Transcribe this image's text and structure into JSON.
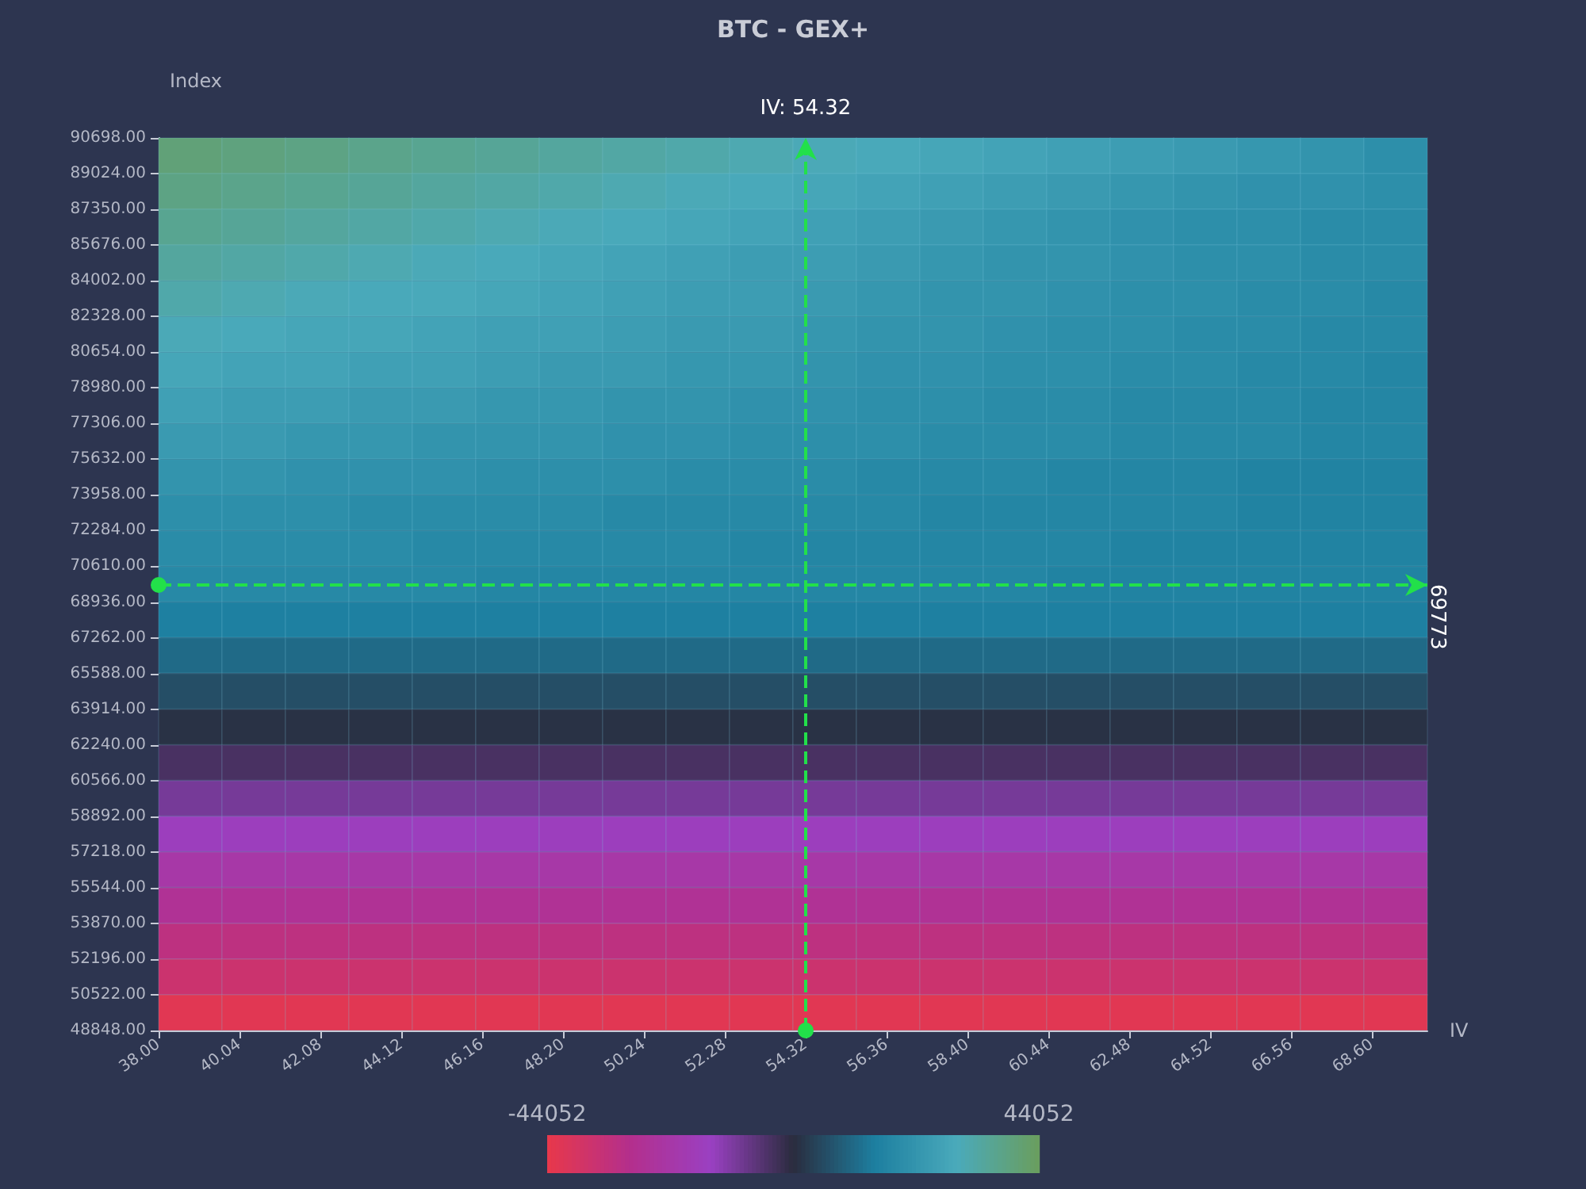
{
  "chart_data": {
    "type": "heatmap",
    "title": "BTC - GEX+",
    "xlabel": "IV",
    "ylabel": "Index",
    "xlim": [
      38,
      70
    ],
    "xticks": [
      {
        "value": 38,
        "label": "38.00"
      },
      40.04,
      42.08,
      44.12,
      46.16,
      {
        "value": 48.2,
        "label": "48.20"
      },
      50.24,
      52.28,
      54.32,
      56.36,
      {
        "value": 58.4,
        "label": "58.40"
      },
      60.44,
      62.48,
      64.52,
      66.56,
      {
        "value": 68.6,
        "label": "68.60"
      }
    ],
    "ylim": [
      48848,
      90698
    ],
    "yticks": [
      {
        "value": 48848,
        "label": "48848.00"
      },
      {
        "value": 50522,
        "label": "50522.00"
      },
      {
        "value": 52196,
        "label": "52196.00"
      },
      {
        "value": 53870,
        "label": "53870.00"
      },
      {
        "value": 55544,
        "label": "55544.00"
      },
      {
        "value": 57218,
        "label": "57218.00"
      },
      {
        "value": 58892,
        "label": "58892.00"
      },
      {
        "value": 60566,
        "label": "60566.00"
      },
      {
        "value": 62240,
        "label": "62240.00"
      },
      {
        "value": 63914,
        "label": "63914.00"
      },
      {
        "value": 65588,
        "label": "65588.00"
      },
      {
        "value": 67262,
        "label": "67262.00"
      },
      {
        "value": 68936,
        "label": "68936.00"
      },
      {
        "value": 70610,
        "label": "70610.00"
      },
      {
        "value": 72284,
        "label": "72284.00"
      },
      {
        "value": 73958,
        "label": "73958.00"
      },
      {
        "value": 75632,
        "label": "75632.00"
      },
      {
        "value": 77306,
        "label": "77306.00"
      },
      {
        "value": 78980,
        "label": "78980.00"
      },
      {
        "value": 80654,
        "label": "80654.00"
      },
      {
        "value": 82328,
        "label": "82328.00"
      },
      {
        "value": 84002,
        "label": "84002.00"
      },
      {
        "value": 85676,
        "label": "85676.00"
      },
      {
        "value": 87350,
        "label": "87350.00"
      },
      {
        "value": 89024,
        "label": "89024.00"
      },
      {
        "value": 90698,
        "label": "90698.00"
      }
    ],
    "clim": [
      -44052,
      44052
    ],
    "cticks": [
      -44052,
      44052
    ],
    "ref_lines": [
      {
        "axis": "x",
        "value": 54.32,
        "label": "IV: 54.32",
        "color": "#22e04a",
        "line_style": "dashed"
      },
      {
        "axis": "y",
        "value": 69773,
        "label": "69773",
        "color": "#22e04a",
        "line_style": "dashed"
      }
    ],
    "cells": [
      [
        40000,
        39000,
        38000,
        37000,
        36000,
        35000,
        34000,
        33000,
        32000,
        31000,
        30000,
        29000,
        28000,
        27000,
        26000,
        25000,
        24000,
        23000,
        22000,
        20000
      ],
      [
        38000,
        37000,
        36000,
        35000,
        34000,
        33000,
        32000,
        31000,
        30000,
        29000,
        28000,
        27000,
        26000,
        25000,
        24000,
        23000,
        22000,
        21000,
        21000,
        20000
      ],
      [
        36000,
        35000,
        34000,
        33000,
        32000,
        31000,
        30000,
        29000,
        28000,
        27000,
        26000,
        25000,
        24000,
        23000,
        22000,
        21000,
        20000,
        20000,
        19000,
        19000
      ],
      [
        34000,
        33000,
        32000,
        31000,
        30000,
        29000,
        28000,
        27000,
        26000,
        25000,
        25000,
        24000,
        23000,
        22000,
        22000,
        21000,
        20000,
        20000,
        19000,
        19000
      ],
      [
        32000,
        31000,
        30000,
        29000,
        29000,
        28000,
        27000,
        26000,
        25000,
        25000,
        24000,
        23000,
        22000,
        22000,
        21000,
        20000,
        20000,
        19000,
        19000,
        18000
      ],
      [
        30000,
        29000,
        28000,
        28000,
        27000,
        26000,
        26000,
        25000,
        24000,
        24000,
        23000,
        22000,
        22000,
        21000,
        20000,
        20000,
        19000,
        19000,
        18000,
        18000
      ],
      [
        28000,
        27000,
        27000,
        26000,
        26000,
        25000,
        24000,
        24000,
        23000,
        23000,
        22000,
        21000,
        21000,
        20000,
        20000,
        19000,
        19000,
        18000,
        18000,
        17000
      ],
      [
        26000,
        25000,
        25000,
        24000,
        24000,
        23000,
        23000,
        22000,
        22000,
        21000,
        21000,
        20000,
        20000,
        19000,
        19000,
        18000,
        18000,
        18000,
        17000,
        17000
      ],
      [
        24000,
        24000,
        23000,
        23000,
        22000,
        22000,
        22000,
        21000,
        21000,
        20000,
        20000,
        20000,
        19000,
        19000,
        19000,
        18000,
        18000,
        18000,
        17000,
        17000
      ],
      [
        22000,
        22000,
        21000,
        21000,
        21000,
        20000,
        20000,
        20000,
        19000,
        19000,
        19000,
        18000,
        18000,
        18000,
        17000,
        17000,
        17000,
        16000,
        16000,
        16000
      ],
      [
        20000,
        20000,
        20000,
        19000,
        19000,
        19000,
        19000,
        18000,
        18000,
        18000,
        18000,
        18000,
        17000,
        17000,
        17000,
        17000,
        17000,
        16000,
        16000,
        16000
      ],
      [
        19000,
        19000,
        19000,
        19000,
        18000,
        18000,
        18000,
        18000,
        18000,
        17000,
        17000,
        17000,
        17000,
        17000,
        17000,
        16000,
        16000,
        16000,
        16000,
        16000
      ],
      [
        18000,
        18000,
        18000,
        18000,
        18000,
        17000,
        17000,
        17000,
        17000,
        17000,
        17000,
        17000,
        17000,
        17000,
        16000,
        16000,
        16000,
        16000,
        16000,
        16000
      ],
      [
        15000,
        15000,
        15000,
        15000,
        15000,
        15000,
        15000,
        15000,
        15000,
        15000,
        15000,
        15000,
        15000,
        15000,
        15000,
        15000,
        15000,
        15000,
        15000,
        15000
      ],
      [
        11000,
        11000,
        11000,
        11000,
        11000,
        11000,
        11000,
        11000,
        11000,
        11000,
        11000,
        11000,
        11000,
        11000,
        11000,
        11000,
        11000,
        11000,
        11000,
        11000
      ],
      [
        6000,
        6000,
        6000,
        6000,
        6000,
        6000,
        6000,
        6000,
        6000,
        6000,
        6000,
        6000,
        6000,
        6000,
        6000,
        6000,
        6000,
        6000,
        6000,
        6000
      ],
      [
        1000,
        1000,
        1000,
        1000,
        1000,
        1000,
        1000,
        1000,
        1000,
        1000,
        1000,
        1000,
        1000,
        1000,
        1000,
        1000,
        1000,
        1000,
        1000,
        1000
      ],
      [
        -4000,
        -4000,
        -4000,
        -4000,
        -4000,
        -4000,
        -4000,
        -4000,
        -4000,
        -4000,
        -4000,
        -4000,
        -4000,
        -4000,
        -4000,
        -4000,
        -4000,
        -4000,
        -4000,
        -4000
      ],
      [
        -10000,
        -10000,
        -10000,
        -10000,
        -10000,
        -10000,
        -10000,
        -10000,
        -10000,
        -10000,
        -10000,
        -10000,
        -10000,
        -10000,
        -10000,
        -10000,
        -10000,
        -10000,
        -10000,
        -10000
      ],
      [
        -16000,
        -16000,
        -16000,
        -16000,
        -16000,
        -16000,
        -16000,
        -16000,
        -16000,
        -16000,
        -16000,
        -16000,
        -16000,
        -16000,
        -16000,
        -16000,
        -16000,
        -16000,
        -16000,
        -16000
      ],
      [
        -22000,
        -22000,
        -22000,
        -22000,
        -22000,
        -22000,
        -22000,
        -22000,
        -22000,
        -22000,
        -22000,
        -22000,
        -22000,
        -22000,
        -22000,
        -22000,
        -22000,
        -22000,
        -22000,
        -22000
      ],
      [
        -27000,
        -27000,
        -27000,
        -27000,
        -27000,
        -27000,
        -27000,
        -27000,
        -27000,
        -27000,
        -27000,
        -27000,
        -27000,
        -27000,
        -27000,
        -27000,
        -27000,
        -27000,
        -27000,
        -27000
      ],
      [
        -32000,
        -32000,
        -32000,
        -32000,
        -32000,
        -32000,
        -32000,
        -32000,
        -32000,
        -32000,
        -32000,
        -32000,
        -32000,
        -32000,
        -32000,
        -32000,
        -32000,
        -32000,
        -32000,
        -32000
      ],
      [
        -36000,
        -36000,
        -36000,
        -36000,
        -36000,
        -36000,
        -36000,
        -36000,
        -36000,
        -36000,
        -36000,
        -36000,
        -36000,
        -36000,
        -36000,
        -36000,
        -36000,
        -36000,
        -36000,
        -36000
      ],
      [
        -42000,
        -42000,
        -42000,
        -42000,
        -42000,
        -42000,
        -42000,
        -42000,
        -42000,
        -42000,
        -42000,
        -42000,
        -42000,
        -42000,
        -42000,
        -42000,
        -42000,
        -42000,
        -42000,
        -42000
      ]
    ]
  }
}
